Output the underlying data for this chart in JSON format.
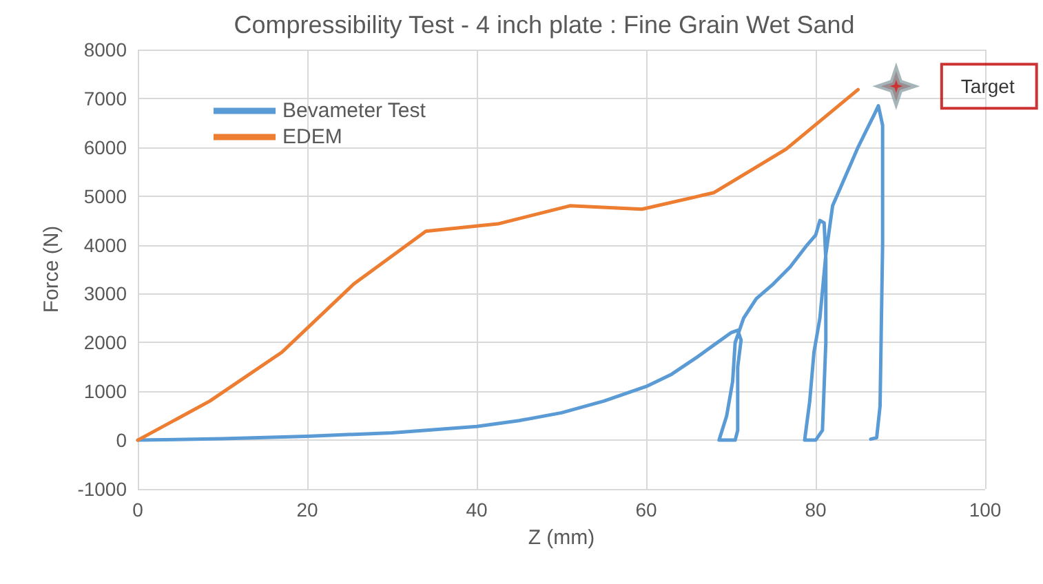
{
  "chart_data": {
    "type": "line",
    "title": "Compressibility Test - 4 inch plate : Fine Grain Wet Sand",
    "xlabel": "Z (mm)",
    "ylabel": "Force (N)",
    "xlim": [
      0,
      100
    ],
    "xticks": [
      0,
      20,
      40,
      60,
      80,
      100
    ],
    "ylim": [
      -1000,
      8000
    ],
    "yticks": [
      -1000,
      0,
      1000,
      2000,
      3000,
      4000,
      5000,
      6000,
      7000,
      8000
    ],
    "grid": true,
    "legend": "top left",
    "marker": "none",
    "line_style": "solid",
    "series": [
      {
        "name": "Bevameter Test",
        "color": "#5b9bd5",
        "x": [
          0,
          10,
          20,
          30,
          40,
          45,
          50,
          55,
          60,
          63,
          66,
          68,
          70,
          70.8,
          71.2,
          70.8,
          70.8,
          70.5,
          69.5,
          68.6,
          69.5,
          70.2,
          70.5,
          71.5,
          73,
          75,
          77,
          79,
          80,
          80.5,
          81,
          81.2,
          81.2,
          80.8,
          80,
          78.7,
          79.3,
          79.8,
          80.5,
          81.2,
          82,
          83,
          84,
          85,
          86,
          87,
          87.4,
          87.9,
          87.9,
          87.6,
          87.2,
          86.5
        ],
        "values": [
          0,
          30,
          80,
          150,
          280,
          400,
          560,
          800,
          1100,
          1350,
          1700,
          1950,
          2200,
          2250,
          2050,
          1500,
          200,
          0,
          0,
          0,
          500,
          1200,
          2000,
          2500,
          2900,
          3200,
          3550,
          4000,
          4200,
          4500,
          4450,
          3700,
          2000,
          200,
          0,
          0,
          800,
          1800,
          2500,
          3800,
          4800,
          5200,
          5600,
          6000,
          6350,
          6700,
          6850,
          6450,
          4000,
          700,
          50,
          20
        ]
      },
      {
        "name": "EDEM",
        "color": "#ed7d31",
        "x": [
          0,
          8.5,
          17,
          25.5,
          34,
          42.5,
          51,
          59.5,
          68,
          76.5,
          85
        ],
        "values": [
          0,
          800,
          1800,
          3200,
          4280,
          4430,
          4800,
          4730,
          5070,
          5960,
          7180
        ]
      },
      {
        "name": "Target",
        "type": "scatter",
        "marker": "star",
        "color": "#c00000",
        "x": [
          89.5
        ],
        "values": [
          7250
        ]
      }
    ]
  }
}
